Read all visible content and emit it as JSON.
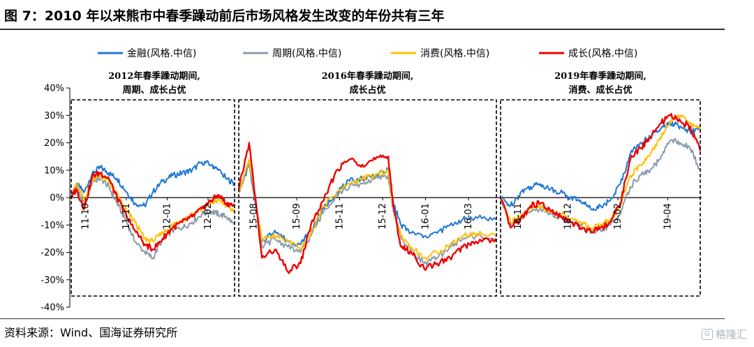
{
  "figure": {
    "title": "图 7：2010 年以来熊市中春季躁动前后市场风格发生改变的年份共有三年",
    "source": "资料来源：Wind、国海证券研究所",
    "watermark": "格隆汇"
  },
  "colors": {
    "finance": "#1f77d4",
    "cycle": "#8c9aab",
    "consumer": "#ffc000",
    "growth": "#ee0000"
  },
  "chart_data": {
    "type": "line",
    "ylim": [
      -40,
      40
    ],
    "yticks": [
      -40,
      -30,
      -20,
      -10,
      0,
      10,
      20,
      30,
      40
    ],
    "ytick_labels": [
      "-40%",
      "-30%",
      "-20%",
      "-10%",
      "0%",
      "10%",
      "20%",
      "30%",
      "40%"
    ],
    "legend": [
      "金融(风格.中信)",
      "周期(风格.中信)",
      "消费(风格.中信)",
      "成长(风格.中信)"
    ],
    "legend_position": "top",
    "annotations": [
      {
        "line1": "2012年春季躁动期间,",
        "line2": "周期、成长占优"
      },
      {
        "line1": "2016年春季躁动期间,",
        "line2": "成长占优"
      },
      {
        "line1": "2019年春季躁动期间,",
        "line2": "消费、成长占优"
      }
    ],
    "panels": [
      {
        "x_ticks": [
          "11-10",
          "11-11",
          "12-01",
          "12-02"
        ],
        "series": {
          "finance": [
            [
              0,
              0
            ],
            [
              0.03,
              5
            ],
            [
              0.08,
              2
            ],
            [
              0.13,
              9
            ],
            [
              0.18,
              11
            ],
            [
              0.23,
              9
            ],
            [
              0.28,
              7
            ],
            [
              0.34,
              2
            ],
            [
              0.39,
              -2
            ],
            [
              0.45,
              -3
            ],
            [
              0.5,
              2
            ],
            [
              0.56,
              6
            ],
            [
              0.62,
              8
            ],
            [
              0.68,
              9
            ],
            [
              0.74,
              10
            ],
            [
              0.8,
              13
            ],
            [
              0.86,
              12
            ],
            [
              0.9,
              10
            ],
            [
              0.95,
              7
            ],
            [
              1,
              5
            ]
          ],
          "cycle": [
            [
              0,
              0
            ],
            [
              0.03,
              4
            ],
            [
              0.08,
              -3
            ],
            [
              0.13,
              6
            ],
            [
              0.18,
              7
            ],
            [
              0.23,
              4
            ],
            [
              0.28,
              -2
            ],
            [
              0.34,
              -9
            ],
            [
              0.39,
              -16
            ],
            [
              0.45,
              -20
            ],
            [
              0.5,
              -22
            ],
            [
              0.56,
              -15
            ],
            [
              0.62,
              -12
            ],
            [
              0.68,
              -11
            ],
            [
              0.74,
              -9
            ],
            [
              0.8,
              -6
            ],
            [
              0.86,
              -5
            ],
            [
              0.9,
              -6
            ],
            [
              0.95,
              -7
            ],
            [
              1,
              -10
            ]
          ],
          "consumer": [
            [
              0,
              0
            ],
            [
              0.03,
              5
            ],
            [
              0.08,
              -1
            ],
            [
              0.13,
              7
            ],
            [
              0.18,
              8
            ],
            [
              0.23,
              6
            ],
            [
              0.28,
              1
            ],
            [
              0.34,
              -5
            ],
            [
              0.39,
              -9
            ],
            [
              0.45,
              -15
            ],
            [
              0.5,
              -16
            ],
            [
              0.56,
              -13
            ],
            [
              0.62,
              -10
            ],
            [
              0.68,
              -8
            ],
            [
              0.74,
              -6
            ],
            [
              0.8,
              -4
            ],
            [
              0.86,
              -2
            ],
            [
              0.9,
              -1
            ],
            [
              0.95,
              -3
            ],
            [
              1,
              -5
            ]
          ],
          "growth": [
            [
              0,
              0
            ],
            [
              0.03,
              3
            ],
            [
              0.08,
              -4
            ],
            [
              0.13,
              8
            ],
            [
              0.18,
              9
            ],
            [
              0.23,
              7
            ],
            [
              0.28,
              0
            ],
            [
              0.34,
              -7
            ],
            [
              0.39,
              -12
            ],
            [
              0.45,
              -17
            ],
            [
              0.5,
              -19
            ],
            [
              0.56,
              -15
            ],
            [
              0.62,
              -11
            ],
            [
              0.68,
              -9
            ],
            [
              0.74,
              -7
            ],
            [
              0.8,
              -4
            ],
            [
              0.86,
              -1
            ],
            [
              0.9,
              1
            ],
            [
              0.95,
              -2
            ],
            [
              1,
              -3
            ]
          ]
        }
      },
      {
        "x_ticks": [
          "15-08",
          "15-09",
          "15-11",
          "15-12",
          "16-01",
          "16-03"
        ],
        "series": {
          "finance": [
            [
              0,
              2
            ],
            [
              0.04,
              12
            ],
            [
              0.09,
              -16
            ],
            [
              0.14,
              -12
            ],
            [
              0.19,
              -16
            ],
            [
              0.24,
              -17
            ],
            [
              0.28,
              -12
            ],
            [
              0.33,
              -4
            ],
            [
              0.38,
              2
            ],
            [
              0.43,
              6
            ],
            [
              0.48,
              7
            ],
            [
              0.53,
              8
            ],
            [
              0.58,
              10
            ],
            [
              0.6,
              -2
            ],
            [
              0.63,
              -10
            ],
            [
              0.67,
              -13
            ],
            [
              0.72,
              -14
            ],
            [
              0.77,
              -13
            ],
            [
              0.82,
              -10
            ],
            [
              0.87,
              -8
            ],
            [
              0.92,
              -7
            ],
            [
              1,
              -8
            ]
          ],
          "cycle": [
            [
              0,
              2
            ],
            [
              0.04,
              13
            ],
            [
              0.09,
              -18
            ],
            [
              0.14,
              -15
            ],
            [
              0.19,
              -18
            ],
            [
              0.24,
              -20
            ],
            [
              0.28,
              -14
            ],
            [
              0.33,
              -5
            ],
            [
              0.38,
              1
            ],
            [
              0.43,
              4
            ],
            [
              0.48,
              5
            ],
            [
              0.53,
              7
            ],
            [
              0.58,
              8
            ],
            [
              0.6,
              -5
            ],
            [
              0.63,
              -15
            ],
            [
              0.67,
              -19
            ],
            [
              0.72,
              -24
            ],
            [
              0.77,
              -22
            ],
            [
              0.82,
              -18
            ],
            [
              0.87,
              -15
            ],
            [
              0.92,
              -14
            ],
            [
              1,
              -15
            ]
          ],
          "consumer": [
            [
              0,
              2
            ],
            [
              0.04,
              14
            ],
            [
              0.09,
              -15
            ],
            [
              0.14,
              -14
            ],
            [
              0.19,
              -16
            ],
            [
              0.24,
              -19
            ],
            [
              0.28,
              -13
            ],
            [
              0.33,
              -3
            ],
            [
              0.38,
              2
            ],
            [
              0.43,
              5
            ],
            [
              0.48,
              7
            ],
            [
              0.53,
              8
            ],
            [
              0.58,
              10
            ],
            [
              0.6,
              -4
            ],
            [
              0.63,
              -14
            ],
            [
              0.67,
              -18
            ],
            [
              0.72,
              -22
            ],
            [
              0.77,
              -20
            ],
            [
              0.82,
              -17
            ],
            [
              0.87,
              -14
            ],
            [
              0.92,
              -13
            ],
            [
              1,
              -14
            ]
          ],
          "growth": [
            [
              0,
              3
            ],
            [
              0.04,
              20
            ],
            [
              0.09,
              -22
            ],
            [
              0.14,
              -19
            ],
            [
              0.19,
              -27
            ],
            [
              0.24,
              -24
            ],
            [
              0.28,
              -10
            ],
            [
              0.33,
              -1
            ],
            [
              0.38,
              10
            ],
            [
              0.43,
              14
            ],
            [
              0.48,
              12
            ],
            [
              0.53,
              14
            ],
            [
              0.58,
              15
            ],
            [
              0.6,
              -3
            ],
            [
              0.63,
              -18
            ],
            [
              0.67,
              -20
            ],
            [
              0.72,
              -26
            ],
            [
              0.77,
              -24
            ],
            [
              0.82,
              -22
            ],
            [
              0.87,
              -18
            ],
            [
              0.92,
              -16
            ],
            [
              1,
              -15
            ]
          ]
        }
      },
      {
        "x_ticks": [
          "18-11",
          "18-12",
          "19-02",
          "19-04"
        ],
        "series": {
          "finance": [
            [
              0,
              0
            ],
            [
              0.05,
              -3
            ],
            [
              0.1,
              2
            ],
            [
              0.15,
              4
            ],
            [
              0.2,
              5
            ],
            [
              0.25,
              3
            ],
            [
              0.3,
              2
            ],
            [
              0.35,
              0
            ],
            [
              0.4,
              -1
            ],
            [
              0.45,
              -4
            ],
            [
              0.5,
              -3
            ],
            [
              0.55,
              -1
            ],
            [
              0.6,
              5
            ],
            [
              0.65,
              16
            ],
            [
              0.7,
              20
            ],
            [
              0.75,
              22
            ],
            [
              0.8,
              25
            ],
            [
              0.85,
              27
            ],
            [
              0.9,
              26
            ],
            [
              0.95,
              24
            ],
            [
              1,
              25
            ]
          ],
          "cycle": [
            [
              0,
              0
            ],
            [
              0.05,
              -10
            ],
            [
              0.1,
              -8
            ],
            [
              0.15,
              -5
            ],
            [
              0.2,
              -4
            ],
            [
              0.25,
              -6
            ],
            [
              0.3,
              -7
            ],
            [
              0.35,
              -9
            ],
            [
              0.4,
              -10
            ],
            [
              0.45,
              -13
            ],
            [
              0.5,
              -12
            ],
            [
              0.55,
              -10
            ],
            [
              0.6,
              -6
            ],
            [
              0.65,
              4
            ],
            [
              0.7,
              8
            ],
            [
              0.75,
              10
            ],
            [
              0.8,
              14
            ],
            [
              0.85,
              21
            ],
            [
              0.9,
              20
            ],
            [
              0.95,
              18
            ],
            [
              1,
              10
            ]
          ],
          "consumer": [
            [
              0,
              0
            ],
            [
              0.05,
              -9
            ],
            [
              0.1,
              -7
            ],
            [
              0.15,
              -4
            ],
            [
              0.2,
              -3
            ],
            [
              0.25,
              -5
            ],
            [
              0.3,
              -6
            ],
            [
              0.35,
              -8
            ],
            [
              0.4,
              -9
            ],
            [
              0.45,
              -11
            ],
            [
              0.5,
              -10
            ],
            [
              0.55,
              -8
            ],
            [
              0.6,
              -3
            ],
            [
              0.65,
              8
            ],
            [
              0.7,
              12
            ],
            [
              0.75,
              16
            ],
            [
              0.8,
              22
            ],
            [
              0.85,
              28
            ],
            [
              0.9,
              30
            ],
            [
              0.95,
              27
            ],
            [
              1,
              25
            ]
          ],
          "growth": [
            [
              0,
              0
            ],
            [
              0.05,
              -11
            ],
            [
              0.1,
              -8
            ],
            [
              0.15,
              -3
            ],
            [
              0.2,
              -2
            ],
            [
              0.25,
              -5
            ],
            [
              0.3,
              -7
            ],
            [
              0.35,
              -9
            ],
            [
              0.4,
              -11
            ],
            [
              0.45,
              -12
            ],
            [
              0.5,
              -11
            ],
            [
              0.55,
              -9
            ],
            [
              0.6,
              -2
            ],
            [
              0.65,
              14
            ],
            [
              0.7,
              18
            ],
            [
              0.75,
              22
            ],
            [
              0.8,
              27
            ],
            [
              0.85,
              30
            ],
            [
              0.9,
              28
            ],
            [
              0.95,
              26
            ],
            [
              1,
              17
            ]
          ]
        }
      }
    ]
  }
}
